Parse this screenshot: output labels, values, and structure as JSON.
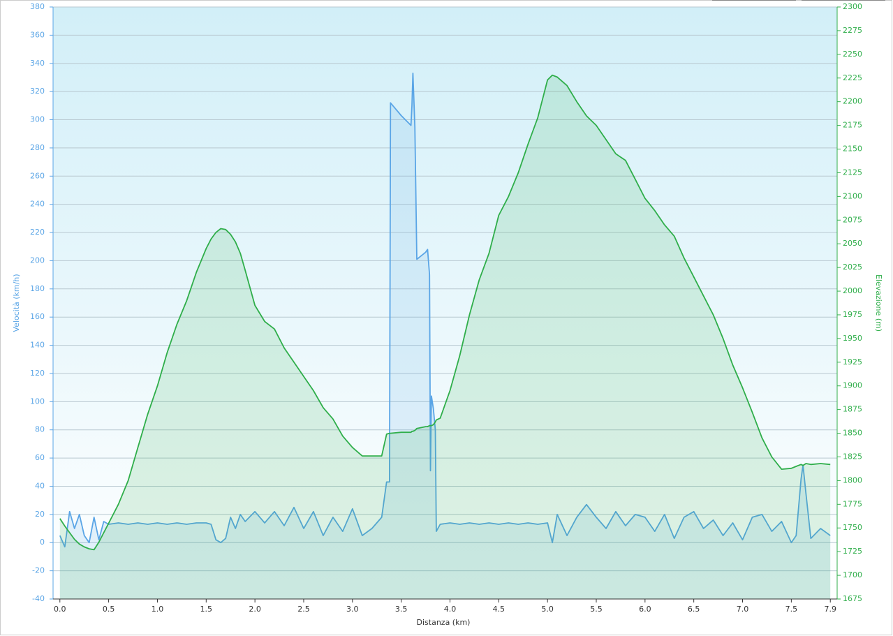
{
  "chart_data": {
    "type": "area",
    "xlabel": "Distanza (km)",
    "ylabel": "Velocità (km/h)",
    "y2label": "Elevazione (m)",
    "grid": true,
    "xlim": [
      -0.07,
      7.97
    ],
    "xticks": [
      {
        "value": 0,
        "label": "0.0"
      },
      0.5,
      {
        "value": 1,
        "label": "1.0"
      },
      1.5,
      {
        "value": 2,
        "label": "2.0"
      },
      2.5,
      {
        "value": 3,
        "label": "3.0"
      },
      3.5,
      {
        "value": 4,
        "label": "4.0"
      },
      4.5,
      {
        "value": 5,
        "label": "5.0"
      },
      5.5,
      {
        "value": 6,
        "label": "6.0"
      },
      6.5,
      {
        "value": 7,
        "label": "7.0"
      },
      7.5,
      7.9
    ],
    "ylim": [
      -40,
      380
    ],
    "yticks": [
      -40,
      -20,
      0,
      20,
      40,
      60,
      80,
      100,
      120,
      140,
      160,
      180,
      200,
      220,
      240,
      260,
      280,
      300,
      320,
      340,
      360,
      380
    ],
    "y2lim": [
      1675,
      2300
    ],
    "y2ticks": [
      1675,
      1700,
      1725,
      1750,
      1775,
      1800,
      1825,
      1850,
      1875,
      1900,
      1925,
      1950,
      1975,
      2000,
      2025,
      2050,
      2075,
      2100,
      2125,
      2150,
      2175,
      2200,
      2225,
      2250,
      2275,
      2300
    ],
    "x": [
      0,
      0.05,
      0.1,
      0.15,
      0.2,
      0.25,
      0.3,
      0.35,
      0.4,
      0.45,
      0.5,
      0.6,
      0.7,
      0.8,
      0.9,
      1.0,
      1.1,
      1.2,
      1.3,
      1.4,
      1.5,
      1.55,
      1.6,
      1.65,
      1.7,
      1.75,
      1.8,
      1.85,
      1.9,
      2.0,
      2.1,
      2.2,
      2.3,
      2.4,
      2.5,
      2.6,
      2.7,
      2.8,
      2.9,
      3.0,
      3.1,
      3.2,
      3.3,
      3.35,
      3.38,
      3.39,
      3.5,
      3.6,
      3.61,
      3.62,
      3.64,
      3.66,
      3.75,
      3.77,
      3.79,
      3.8,
      3.81,
      3.83,
      3.85,
      3.86,
      3.9,
      4.0,
      4.1,
      4.2,
      4.3,
      4.4,
      4.5,
      4.6,
      4.7,
      4.8,
      4.9,
      5.0,
      5.05,
      5.1,
      5.2,
      5.3,
      5.4,
      5.5,
      5.6,
      5.7,
      5.8,
      5.9,
      6.0,
      6.1,
      6.2,
      6.3,
      6.4,
      6.5,
      6.6,
      6.7,
      6.8,
      6.9,
      7.0,
      7.1,
      7.2,
      7.3,
      7.4,
      7.5,
      7.55,
      7.6,
      7.62,
      7.65,
      7.7,
      7.8,
      7.9
    ],
    "series": [
      {
        "color": "#5aa5e6",
        "values": [
          5,
          -3,
          22,
          10,
          20,
          5,
          0,
          18,
          2,
          15,
          13,
          14,
          13,
          14,
          13,
          14,
          13,
          14,
          13,
          14,
          14,
          13,
          2,
          0,
          3,
          18,
          10,
          20,
          15,
          22,
          14,
          22,
          12,
          25,
          10,
          22,
          5,
          18,
          8,
          24,
          5,
          10,
          18,
          43,
          43,
          312,
          303,
          296,
          310,
          333,
          295,
          201,
          206,
          208,
          190,
          51,
          104,
          95,
          80,
          8,
          13,
          14,
          13,
          14,
          13,
          14,
          13,
          14,
          13,
          14,
          13,
          14,
          0,
          20,
          5,
          18,
          27,
          18,
          10,
          22,
          12,
          20,
          18,
          8,
          20,
          3,
          18,
          22,
          10,
          16,
          5,
          14,
          2,
          18,
          20,
          8,
          15,
          0,
          5,
          45,
          55,
          35,
          3,
          10,
          5
        ]
      },
      {
        "color": "#2fae4a",
        "axis": "y2",
        "values": [
          1760,
          1752,
          1745,
          1738,
          1733,
          1730,
          1728,
          1727,
          1735,
          1745,
          1755,
          1775,
          1800,
          1835,
          1870,
          1900,
          1935,
          1965,
          1990,
          2020,
          2045,
          2055,
          2062,
          2066,
          2065,
          2060,
          2052,
          2040,
          2022,
          1985,
          1968,
          1960,
          1940,
          1925,
          1910,
          1895,
          1877,
          1865,
          1847,
          1835,
          1826,
          1826,
          1826,
          1849,
          1850,
          1850,
          1851,
          1851,
          1852,
          1852,
          1853,
          1855,
          1857,
          1857,
          1858,
          1858,
          1858,
          1859,
          1862,
          1864,
          1866,
          1895,
          1932,
          1975,
          2012,
          2040,
          2080,
          2100,
          2125,
          2155,
          2183,
          2223,
          2228,
          2226,
          2217,
          2200,
          2185,
          2175,
          2160,
          2145,
          2138,
          2118,
          2098,
          2085,
          2070,
          2058,
          2035,
          2015,
          1995,
          1975,
          1950,
          1922,
          1898,
          1872,
          1845,
          1825,
          1812,
          1813,
          1815,
          1817,
          1816,
          1818,
          1817,
          1818,
          1817
        ]
      }
    ]
  }
}
